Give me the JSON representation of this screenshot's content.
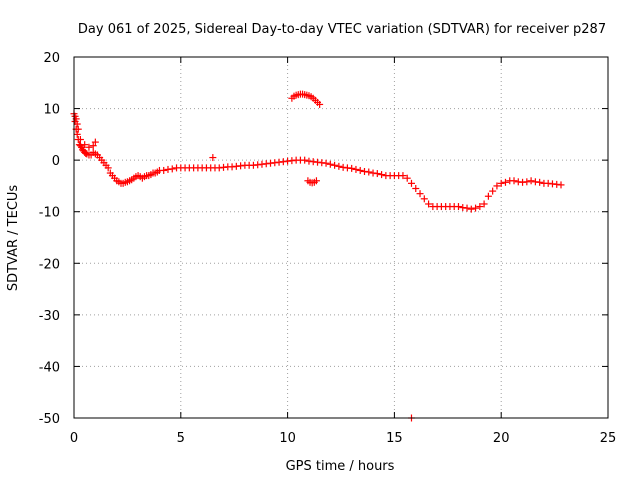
{
  "chart_data": {
    "type": "scatter",
    "title": "Day 061 of 2025, Sidereal Day-to-day VTEC variation (SDTVAR) for receiver p287",
    "xlabel": "GPS time / hours",
    "ylabel": "SDTVAR / TECUs",
    "xlim": [
      0,
      25
    ],
    "ylim": [
      -50,
      20
    ],
    "xticks": [
      0,
      5,
      10,
      15,
      20,
      25
    ],
    "yticks": [
      20,
      10,
      0,
      -10,
      -20,
      -30,
      -40,
      -50
    ],
    "grid": true,
    "marker": "+",
    "series": [
      {
        "name": "SDTVAR",
        "color": "#ff0000",
        "x": [
          0.0,
          0.05,
          0.1,
          0.15,
          0.2,
          0.25,
          0.3,
          0.35,
          0.4,
          0.45,
          0.5,
          0.55,
          0.6,
          0.7,
          0.8,
          0.9,
          1.0,
          1.1,
          1.2,
          1.3,
          1.4,
          1.5,
          1.6,
          1.7,
          1.8,
          1.9,
          2.0,
          2.1,
          2.2,
          2.3,
          2.4,
          2.5,
          2.6,
          2.7,
          2.8,
          2.9,
          3.0,
          3.1,
          3.2,
          3.3,
          3.4,
          3.5,
          3.6,
          3.7,
          3.8,
          3.9,
          4.0,
          4.2,
          4.4,
          4.6,
          4.8,
          5.0,
          5.2,
          5.4,
          5.6,
          5.8,
          6.0,
          6.2,
          6.4,
          6.6,
          6.8,
          7.0,
          7.2,
          7.4,
          7.6,
          7.8,
          8.0,
          8.2,
          8.4,
          8.6,
          8.8,
          9.0,
          9.2,
          9.4,
          9.6,
          9.8,
          10.0,
          10.2,
          10.4,
          10.6,
          10.8,
          11.0,
          11.2,
          11.4,
          11.6,
          11.8,
          12.0,
          12.2,
          12.4,
          12.6,
          12.8,
          13.0,
          13.2,
          13.4,
          13.6,
          13.8,
          14.0,
          14.2,
          14.4,
          14.6,
          14.8,
          15.0,
          15.2,
          15.4,
          15.6,
          15.8,
          16.0,
          16.2,
          16.4,
          16.6,
          16.8,
          17.0,
          17.2,
          17.4,
          17.6,
          17.8,
          18.0,
          18.2,
          18.4,
          18.6,
          18.8,
          19.0,
          19.2,
          19.4,
          19.6,
          19.8,
          20.0,
          20.2,
          20.4,
          20.6,
          20.8,
          21.0,
          21.2,
          21.4,
          21.6,
          21.8,
          22.0,
          22.2,
          22.4,
          22.6,
          22.8,
          10.2,
          10.3,
          10.4,
          10.5,
          10.6,
          10.7,
          10.8,
          10.9,
          11.0,
          11.1,
          11.2,
          11.3,
          11.4,
          11.5,
          10.95,
          11.05,
          11.15,
          11.25,
          11.35,
          6.5,
          15.8,
          0.05,
          0.1,
          0.15,
          0.2,
          0.3,
          0.5,
          0.7,
          0.9,
          1.0
        ],
        "y": [
          9,
          7.5,
          6,
          5,
          4,
          3,
          2.8,
          2.5,
          2,
          1.8,
          1.5,
          1.3,
          1.2,
          1.0,
          1.0,
          1.5,
          1.2,
          1.0,
          0.5,
          0,
          -0.5,
          -1,
          -1.5,
          -2.5,
          -3,
          -3.5,
          -4,
          -4.2,
          -4.5,
          -4.5,
          -4.3,
          -4.2,
          -4,
          -3.8,
          -3.5,
          -3.2,
          -3,
          -3.2,
          -3.5,
          -3.2,
          -3,
          -3,
          -2.8,
          -2.5,
          -2.5,
          -2.3,
          -2,
          -2,
          -1.8,
          -1.7,
          -1.5,
          -1.5,
          -1.5,
          -1.5,
          -1.5,
          -1.5,
          -1.5,
          -1.5,
          -1.5,
          -1.5,
          -1.5,
          -1.4,
          -1.3,
          -1.3,
          -1.2,
          -1.1,
          -1.0,
          -1.0,
          -1.0,
          -0.9,
          -0.8,
          -0.7,
          -0.6,
          -0.5,
          -0.4,
          -0.3,
          -0.2,
          -0.1,
          0,
          0,
          0,
          -0.2,
          -0.3,
          -0.4,
          -0.5,
          -0.6,
          -0.8,
          -1.0,
          -1.2,
          -1.4,
          -1.5,
          -1.6,
          -1.8,
          -2.0,
          -2.2,
          -2.3,
          -2.5,
          -2.6,
          -2.8,
          -3.0,
          -3.0,
          -3.0,
          -3.0,
          -3.0,
          -3.5,
          -4.5,
          -5.5,
          -6.5,
          -7.5,
          -8.5,
          -9.0,
          -9.0,
          -9.0,
          -9.0,
          -9.0,
          -9.0,
          -9.0,
          -9.2,
          -9.3,
          -9.5,
          -9.3,
          -9.0,
          -8.5,
          -7.0,
          -6.0,
          -5.0,
          -4.5,
          -4.3,
          -4.0,
          -4.0,
          -4.2,
          -4.3,
          -4.2,
          -4.0,
          -4.2,
          -4.3,
          -4.5,
          -4.5,
          -4.6,
          -4.7,
          -4.8,
          12.0,
          12.4,
          12.6,
          12.7,
          12.8,
          12.8,
          12.7,
          12.6,
          12.5,
          12.3,
          12.0,
          11.6,
          11.2,
          10.8,
          -4.0,
          -4.3,
          -4.4,
          -4.3,
          -4.0,
          0.5,
          -50,
          8.5,
          8,
          7,
          6,
          4,
          3,
          2.5,
          2.8,
          3.5
        ]
      }
    ]
  }
}
